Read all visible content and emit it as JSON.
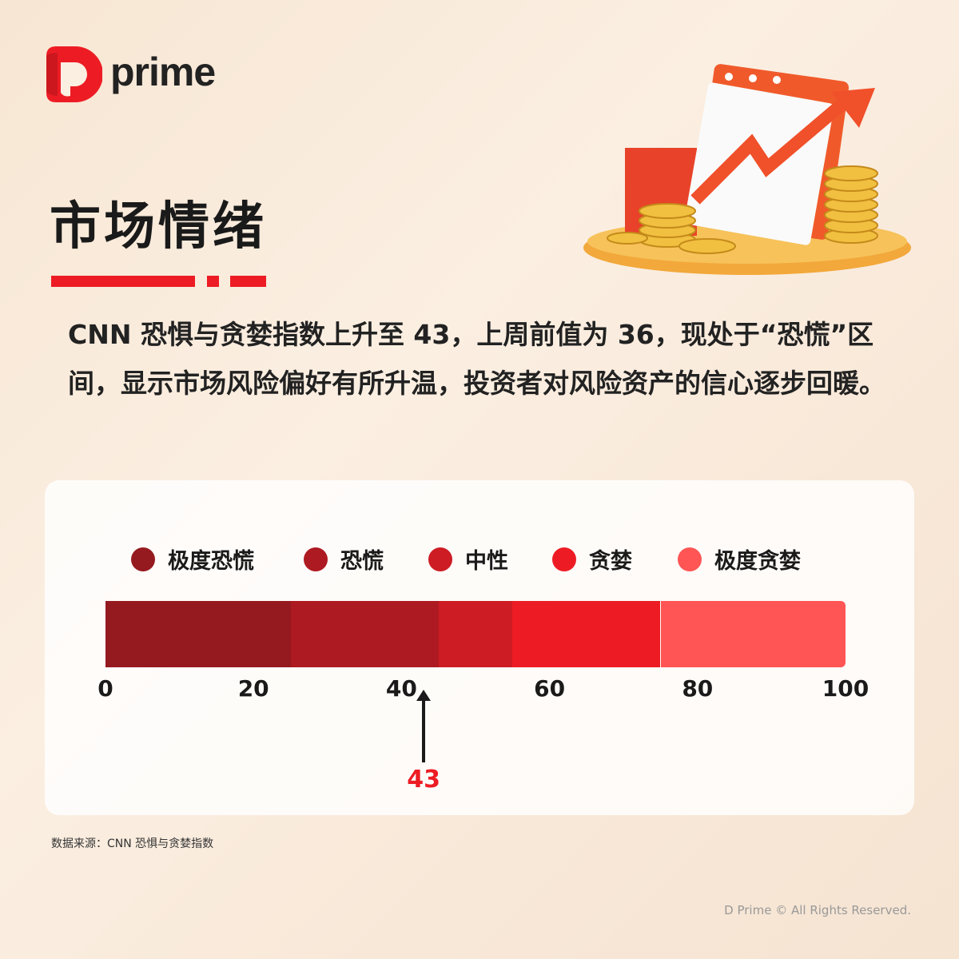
{
  "brand": {
    "logo_text": "prime"
  },
  "title": "市场情绪",
  "description": "CNN 恐惧与贪婪指数上升至 43，上周前值为 36，现处于“恐慌”区间，显示市场风险偏好有所升温，投资者对风险资产的信心逐步回暖。",
  "chart_data": {
    "type": "gauge-bar",
    "legend": [
      {
        "label": "极度恐慌",
        "color": "#951a1f",
        "range": [
          0,
          25
        ]
      },
      {
        "label": "恐慌",
        "color": "#ae1a22",
        "range": [
          25,
          45
        ]
      },
      {
        "label": "中性",
        "color": "#cd1c24",
        "range": [
          45,
          55
        ]
      },
      {
        "label": "贪婪",
        "color": "#ed1c24",
        "range": [
          55,
          75
        ]
      },
      {
        "label": "极度贪婪",
        "color": "#ff5555",
        "range": [
          75,
          100
        ]
      }
    ],
    "ticks": [
      "0",
      "20",
      "40",
      "60",
      "80",
      "100"
    ],
    "tick_values": [
      0,
      20,
      40,
      60,
      80,
      100
    ],
    "xlim": [
      0,
      100
    ],
    "value": 43,
    "value_label": "43",
    "value_color": "#ed1c24"
  },
  "source": "数据来源：CNN 恐惧与贪婪指数",
  "copyright": "D Prime © All Rights Reserved."
}
